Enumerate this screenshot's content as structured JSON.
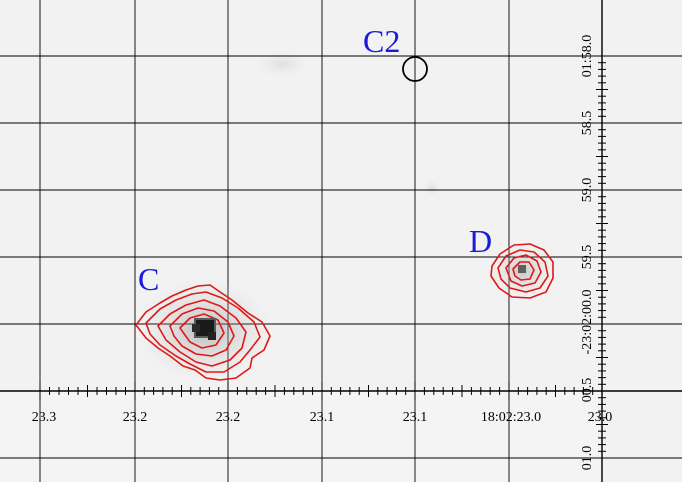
{
  "labels": {
    "source_c": "C",
    "source_c2": "C2",
    "source_d": "D"
  },
  "x_ticks": [
    "23.3",
    "23.2",
    "23.2",
    "23.1",
    "23.1",
    "18:02:23.0",
    "23.0"
  ],
  "y_ticks": [
    "01:58.0",
    "58.5",
    "59.0",
    "59.5",
    "-23:02:00.0",
    "00.5",
    "01.0"
  ],
  "colors": {
    "background": "#f1f1f1",
    "grid": "#000000",
    "contour": "#e01818",
    "label": "#1a1adc",
    "marker": "#000000"
  }
}
